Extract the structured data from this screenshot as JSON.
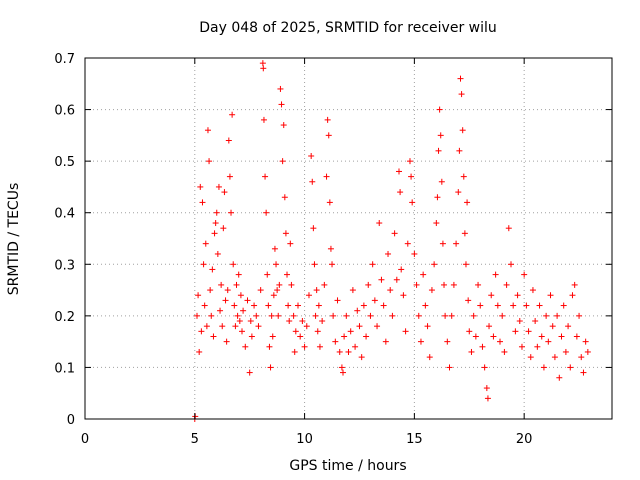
{
  "chart_data": {
    "type": "scatter",
    "title": "Day 048 of 2025, SRMTID for receiver wilu",
    "xlabel": "GPS time / hours",
    "ylabel": "SRMTID / TECUs",
    "xlim": [
      0,
      24.0
    ],
    "ylim": [
      0,
      0.7
    ],
    "xticks": [
      0,
      5,
      10,
      15,
      20
    ],
    "xtick_labels": [
      "0",
      "5",
      "10",
      "15",
      "20"
    ],
    "yticks": [
      0,
      0.1,
      0.2,
      0.3,
      0.4,
      0.5,
      0.6,
      0.7
    ],
    "ytick_labels": [
      "0",
      "0.1",
      "0.2",
      "0.3",
      "0.4",
      "0.5",
      "0.6",
      "0.7"
    ],
    "grid": true,
    "marker": "+",
    "color": "#ff0000",
    "series": [
      {
        "name": "SRMTID",
        "points": [
          [
            5.0,
            0.0
          ],
          [
            5.02,
            0.005
          ],
          [
            5.1,
            0.2
          ],
          [
            5.15,
            0.24
          ],
          [
            5.2,
            0.13
          ],
          [
            5.25,
            0.45
          ],
          [
            5.3,
            0.17
          ],
          [
            5.35,
            0.42
          ],
          [
            5.4,
            0.3
          ],
          [
            5.45,
            0.22
          ],
          [
            5.5,
            0.34
          ],
          [
            5.55,
            0.18
          ],
          [
            5.6,
            0.56
          ],
          [
            5.65,
            0.5
          ],
          [
            5.7,
            0.25
          ],
          [
            5.75,
            0.2
          ],
          [
            5.8,
            0.29
          ],
          [
            5.85,
            0.16
          ],
          [
            5.9,
            0.36
          ],
          [
            5.95,
            0.38
          ],
          [
            6.0,
            0.4
          ],
          [
            6.05,
            0.32
          ],
          [
            6.1,
            0.45
          ],
          [
            6.15,
            0.21
          ],
          [
            6.2,
            0.26
          ],
          [
            6.25,
            0.18
          ],
          [
            6.3,
            0.37
          ],
          [
            6.35,
            0.44
          ],
          [
            6.4,
            0.23
          ],
          [
            6.45,
            0.15
          ],
          [
            6.5,
            0.25
          ],
          [
            6.55,
            0.54
          ],
          [
            6.6,
            0.47
          ],
          [
            6.65,
            0.4
          ],
          [
            6.7,
            0.59
          ],
          [
            6.75,
            0.3
          ],
          [
            6.8,
            0.22
          ],
          [
            6.85,
            0.18
          ],
          [
            6.9,
            0.26
          ],
          [
            6.95,
            0.2
          ],
          [
            7.0,
            0.28
          ],
          [
            7.05,
            0.19
          ],
          [
            7.1,
            0.24
          ],
          [
            7.15,
            0.17
          ],
          [
            7.2,
            0.21
          ],
          [
            7.3,
            0.14
          ],
          [
            7.4,
            0.23
          ],
          [
            7.5,
            0.09
          ],
          [
            7.55,
            0.19
          ],
          [
            7.6,
            0.16
          ],
          [
            7.7,
            0.22
          ],
          [
            7.8,
            0.2
          ],
          [
            7.9,
            0.18
          ],
          [
            8.0,
            0.25
          ],
          [
            8.1,
            0.69
          ],
          [
            8.12,
            0.68
          ],
          [
            8.15,
            0.58
          ],
          [
            8.2,
            0.47
          ],
          [
            8.25,
            0.4
          ],
          [
            8.3,
            0.28
          ],
          [
            8.35,
            0.22
          ],
          [
            8.4,
            0.14
          ],
          [
            8.45,
            0.1
          ],
          [
            8.5,
            0.2
          ],
          [
            8.55,
            0.16
          ],
          [
            8.6,
            0.24
          ],
          [
            8.65,
            0.33
          ],
          [
            8.7,
            0.3
          ],
          [
            8.75,
            0.25
          ],
          [
            8.8,
            0.2
          ],
          [
            8.85,
            0.26
          ],
          [
            8.9,
            0.64
          ],
          [
            8.95,
            0.61
          ],
          [
            9.0,
            0.5
          ],
          [
            9.05,
            0.57
          ],
          [
            9.1,
            0.43
          ],
          [
            9.15,
            0.36
          ],
          [
            9.2,
            0.28
          ],
          [
            9.25,
            0.22
          ],
          [
            9.3,
            0.19
          ],
          [
            9.35,
            0.34
          ],
          [
            9.4,
            0.26
          ],
          [
            9.5,
            0.2
          ],
          [
            9.55,
            0.13
          ],
          [
            9.6,
            0.17
          ],
          [
            9.7,
            0.22
          ],
          [
            9.8,
            0.16
          ],
          [
            9.9,
            0.19
          ],
          [
            10.0,
            0.14
          ],
          [
            10.1,
            0.18
          ],
          [
            10.2,
            0.24
          ],
          [
            10.3,
            0.51
          ],
          [
            10.35,
            0.46
          ],
          [
            10.4,
            0.37
          ],
          [
            10.45,
            0.3
          ],
          [
            10.5,
            0.2
          ],
          [
            10.55,
            0.25
          ],
          [
            10.6,
            0.17
          ],
          [
            10.65,
            0.22
          ],
          [
            10.7,
            0.14
          ],
          [
            10.8,
            0.19
          ],
          [
            10.9,
            0.26
          ],
          [
            11.0,
            0.47
          ],
          [
            11.05,
            0.58
          ],
          [
            11.1,
            0.55
          ],
          [
            11.15,
            0.42
          ],
          [
            11.2,
            0.33
          ],
          [
            11.25,
            0.3
          ],
          [
            11.3,
            0.2
          ],
          [
            11.4,
            0.15
          ],
          [
            11.5,
            0.23
          ],
          [
            11.6,
            0.13
          ],
          [
            11.7,
            0.1
          ],
          [
            11.75,
            0.09
          ],
          [
            11.8,
            0.16
          ],
          [
            11.9,
            0.2
          ],
          [
            12.0,
            0.13
          ],
          [
            12.1,
            0.17
          ],
          [
            12.2,
            0.25
          ],
          [
            12.3,
            0.14
          ],
          [
            12.4,
            0.21
          ],
          [
            12.5,
            0.18
          ],
          [
            12.6,
            0.12
          ],
          [
            12.7,
            0.22
          ],
          [
            12.8,
            0.16
          ],
          [
            12.9,
            0.26
          ],
          [
            13.0,
            0.2
          ],
          [
            13.1,
            0.3
          ],
          [
            13.2,
            0.23
          ],
          [
            13.3,
            0.18
          ],
          [
            13.4,
            0.38
          ],
          [
            13.5,
            0.27
          ],
          [
            13.6,
            0.22
          ],
          [
            13.7,
            0.15
          ],
          [
            13.8,
            0.32
          ],
          [
            13.9,
            0.25
          ],
          [
            14.0,
            0.2
          ],
          [
            14.1,
            0.36
          ],
          [
            14.2,
            0.27
          ],
          [
            14.3,
            0.48
          ],
          [
            14.35,
            0.44
          ],
          [
            14.4,
            0.29
          ],
          [
            14.5,
            0.24
          ],
          [
            14.6,
            0.17
          ],
          [
            14.7,
            0.34
          ],
          [
            14.8,
            0.5
          ],
          [
            14.85,
            0.47
          ],
          [
            14.9,
            0.42
          ],
          [
            15.0,
            0.32
          ],
          [
            15.1,
            0.26
          ],
          [
            15.2,
            0.2
          ],
          [
            15.3,
            0.15
          ],
          [
            15.4,
            0.28
          ],
          [
            15.5,
            0.22
          ],
          [
            15.6,
            0.18
          ],
          [
            15.7,
            0.12
          ],
          [
            15.8,
            0.25
          ],
          [
            15.9,
            0.3
          ],
          [
            16.0,
            0.38
          ],
          [
            16.05,
            0.43
          ],
          [
            16.1,
            0.52
          ],
          [
            16.15,
            0.6
          ],
          [
            16.2,
            0.55
          ],
          [
            16.25,
            0.46
          ],
          [
            16.3,
            0.34
          ],
          [
            16.35,
            0.26
          ],
          [
            16.4,
            0.2
          ],
          [
            16.5,
            0.15
          ],
          [
            16.6,
            0.1
          ],
          [
            16.7,
            0.2
          ],
          [
            16.8,
            0.26
          ],
          [
            16.9,
            0.34
          ],
          [
            17.0,
            0.44
          ],
          [
            17.05,
            0.52
          ],
          [
            17.1,
            0.66
          ],
          [
            17.15,
            0.63
          ],
          [
            17.2,
            0.56
          ],
          [
            17.25,
            0.47
          ],
          [
            17.3,
            0.36
          ],
          [
            17.35,
            0.3
          ],
          [
            17.4,
            0.42
          ],
          [
            17.45,
            0.23
          ],
          [
            17.5,
            0.17
          ],
          [
            17.6,
            0.13
          ],
          [
            17.7,
            0.2
          ],
          [
            17.8,
            0.16
          ],
          [
            17.9,
            0.26
          ],
          [
            18.0,
            0.22
          ],
          [
            18.1,
            0.14
          ],
          [
            18.2,
            0.1
          ],
          [
            18.3,
            0.06
          ],
          [
            18.35,
            0.04
          ],
          [
            18.4,
            0.18
          ],
          [
            18.5,
            0.24
          ],
          [
            18.6,
            0.16
          ],
          [
            18.7,
            0.28
          ],
          [
            18.8,
            0.22
          ],
          [
            18.9,
            0.15
          ],
          [
            19.0,
            0.2
          ],
          [
            19.1,
            0.13
          ],
          [
            19.2,
            0.26
          ],
          [
            19.3,
            0.37
          ],
          [
            19.4,
            0.3
          ],
          [
            19.5,
            0.22
          ],
          [
            19.6,
            0.17
          ],
          [
            19.7,
            0.24
          ],
          [
            19.8,
            0.19
          ],
          [
            19.9,
            0.14
          ],
          [
            20.0,
            0.28
          ],
          [
            20.1,
            0.22
          ],
          [
            20.2,
            0.17
          ],
          [
            20.3,
            0.12
          ],
          [
            20.4,
            0.25
          ],
          [
            20.5,
            0.19
          ],
          [
            20.6,
            0.14
          ],
          [
            20.7,
            0.22
          ],
          [
            20.8,
            0.16
          ],
          [
            20.9,
            0.1
          ],
          [
            21.0,
            0.2
          ],
          [
            21.1,
            0.15
          ],
          [
            21.2,
            0.24
          ],
          [
            21.3,
            0.18
          ],
          [
            21.4,
            0.12
          ],
          [
            21.5,
            0.2
          ],
          [
            21.6,
            0.08
          ],
          [
            21.7,
            0.16
          ],
          [
            21.8,
            0.22
          ],
          [
            21.9,
            0.13
          ],
          [
            22.0,
            0.18
          ],
          [
            22.1,
            0.1
          ],
          [
            22.2,
            0.24
          ],
          [
            22.3,
            0.26
          ],
          [
            22.4,
            0.16
          ],
          [
            22.5,
            0.2
          ],
          [
            22.6,
            0.12
          ],
          [
            22.7,
            0.09
          ],
          [
            22.8,
            0.15
          ],
          [
            22.9,
            0.13
          ]
        ]
      }
    ]
  }
}
